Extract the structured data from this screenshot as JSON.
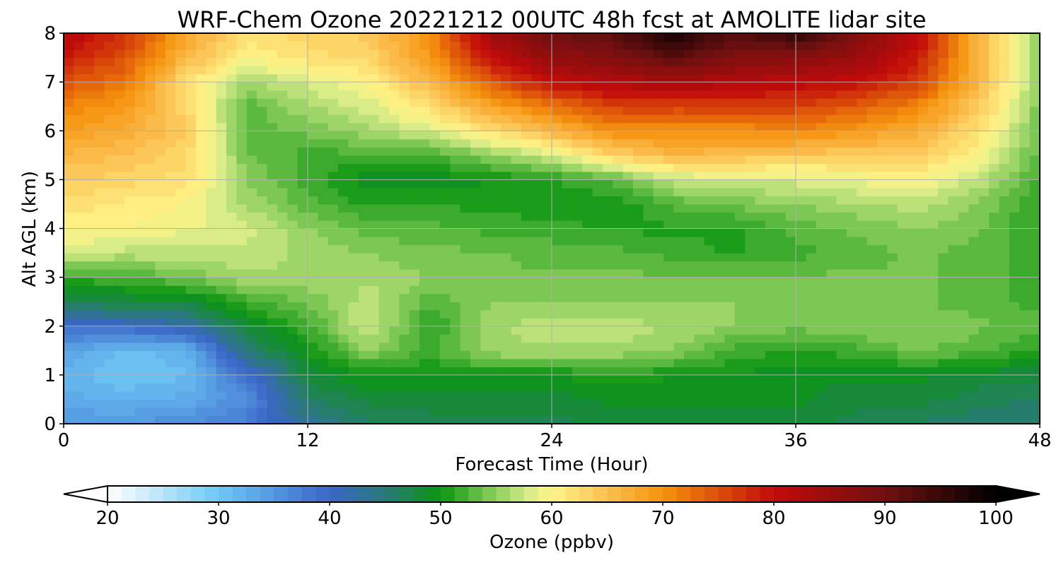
{
  "chart_data": {
    "type": "heatmap",
    "title": "WRF-Chem Ozone  20221212 00UTC 48h fcst at AMOLITE lidar site",
    "xlabel": "Forecast Time (Hour)",
    "ylabel": "Alt AGL (km)",
    "xlim": [
      0,
      48
    ],
    "ylim": [
      0,
      8
    ],
    "xticks": [
      0,
      12,
      24,
      36,
      48
    ],
    "yticks": [
      0,
      1,
      2,
      3,
      4,
      5,
      6,
      7,
      8
    ],
    "grid": true,
    "x": [
      0,
      3,
      6,
      9,
      12,
      15,
      18,
      21,
      24,
      27,
      30,
      33,
      36,
      39,
      42,
      45,
      48
    ],
    "y": [
      0,
      0.5,
      1,
      1.5,
      2,
      2.5,
      3,
      3.5,
      4,
      4.5,
      5,
      5.5,
      6,
      6.5,
      7,
      7.5,
      8
    ],
    "z": [
      [
        35,
        35,
        36,
        38,
        43,
        46,
        47,
        47,
        47,
        48,
        48,
        48,
        48,
        47,
        46,
        45,
        45
      ],
      [
        33,
        32,
        33,
        36,
        46,
        48,
        48,
        48,
        48,
        49,
        49,
        49,
        49,
        48,
        48,
        47,
        46
      ],
      [
        32,
        30,
        31,
        39,
        48,
        50,
        50,
        50,
        50,
        51,
        50,
        50,
        49,
        49,
        49,
        48,
        48
      ],
      [
        34,
        31,
        32,
        45,
        50,
        55,
        52,
        56,
        56,
        56,
        55,
        52,
        51,
        52,
        54,
        53,
        51
      ],
      [
        39,
        40,
        42,
        48,
        52,
        58,
        51,
        56,
        57,
        57,
        56,
        55,
        54,
        55,
        55,
        54,
        53
      ],
      [
        47,
        48,
        48,
        52,
        54,
        57,
        53,
        55,
        55,
        55,
        55,
        55,
        55,
        55,
        54,
        53,
        52
      ],
      [
        52,
        52,
        54,
        56,
        56,
        56,
        55,
        54,
        54,
        54,
        54,
        54,
        54,
        54,
        54,
        53,
        52
      ],
      [
        58,
        57,
        57,
        57,
        56,
        55,
        54,
        54,
        53,
        53,
        52,
        51,
        52,
        53,
        54,
        53,
        52
      ],
      [
        60,
        60,
        59,
        58,
        55,
        53,
        53,
        52,
        52,
        51,
        51,
        51,
        53,
        54,
        55,
        54,
        51
      ],
      [
        62,
        61,
        60,
        56,
        53,
        51,
        51,
        51,
        50,
        50,
        53,
        54,
        55,
        56,
        57,
        55,
        51
      ],
      [
        64,
        63,
        62,
        55,
        52,
        49,
        49,
        50,
        51,
        53,
        57,
        58,
        58,
        59,
        60,
        57,
        52
      ],
      [
        66,
        65,
        63,
        54,
        52,
        52,
        52,
        55,
        58,
        63,
        66,
        65,
        64,
        64,
        64,
        60,
        53
      ],
      [
        69,
        67,
        64,
        53,
        54,
        56,
        58,
        62,
        66,
        70,
        70,
        70,
        71,
        69,
        67,
        62,
        54
      ],
      [
        71,
        69,
        63,
        53,
        56,
        58,
        62,
        68,
        72,
        76,
        76,
        76,
        76,
        74,
        71,
        64,
        54
      ],
      [
        75,
        72,
        62,
        56,
        58,
        60,
        66,
        74,
        80,
        82,
        83,
        82,
        81,
        80,
        76,
        66,
        55
      ],
      [
        79,
        75,
        66,
        60,
        62,
        63,
        69,
        80,
        86,
        88,
        92,
        88,
        87,
        85,
        79,
        66,
        55
      ],
      [
        82,
        77,
        68,
        62,
        63,
        64,
        70,
        84,
        90,
        92,
        98,
        92,
        96,
        88,
        81,
        66,
        55
      ]
    ],
    "colorbar": {
      "label": "Ozone  (ppbv)",
      "min": 20,
      "max": 100,
      "ticks": [
        20,
        30,
        40,
        50,
        60,
        70,
        80,
        90,
        100
      ],
      "extend": "both",
      "stops": [
        {
          "v": 20,
          "c": "#ffffff"
        },
        {
          "v": 30,
          "c": "#6ec7f5"
        },
        {
          "v": 40,
          "c": "#3a66c8"
        },
        {
          "v": 45,
          "c": "#2a7a78"
        },
        {
          "v": 50,
          "c": "#0a9410"
        },
        {
          "v": 55,
          "c": "#8ed05e"
        },
        {
          "v": 58,
          "c": "#d8ec88"
        },
        {
          "v": 60,
          "c": "#fff58a"
        },
        {
          "v": 65,
          "c": "#fcc050"
        },
        {
          "v": 70,
          "c": "#f5920d"
        },
        {
          "v": 75,
          "c": "#dc4e0a"
        },
        {
          "v": 80,
          "c": "#c20a0a"
        },
        {
          "v": 90,
          "c": "#701010"
        },
        {
          "v": 100,
          "c": "#000000"
        }
      ]
    }
  }
}
